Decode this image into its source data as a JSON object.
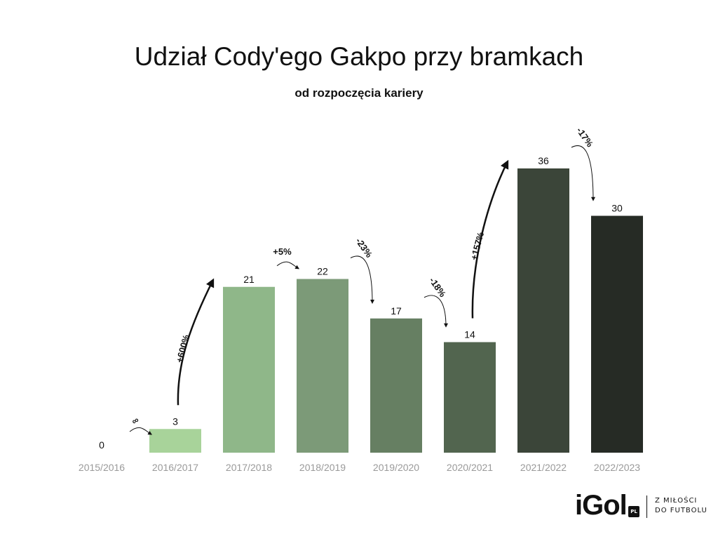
{
  "chart_data": {
    "type": "bar",
    "title": "Udział Cody'ego Gakpo przy bramkach",
    "subtitle": "od rozpoczęcia kariery",
    "categories": [
      "2015/2016",
      "2016/2017",
      "2017/2018",
      "2018/2019",
      "2019/2020",
      "2020/2021",
      "2021/2022",
      "2022/2023"
    ],
    "values": [
      0,
      3,
      21,
      22,
      17,
      14,
      36,
      30
    ],
    "colors": [
      "#a8d39a",
      "#a8d39a",
      "#8fb789",
      "#7c9a78",
      "#667f62",
      "#52654f",
      "#3b4539",
      "#262b25"
    ],
    "changes": [
      {
        "from": "2015/2016",
        "to": "2016/2017",
        "label": "∞"
      },
      {
        "from": "2016/2017",
        "to": "2017/2018",
        "label": "+600%"
      },
      {
        "from": "2017/2018",
        "to": "2018/2019",
        "label": "+5%"
      },
      {
        "from": "2018/2019",
        "to": "2019/2020",
        "label": "-23%"
      },
      {
        "from": "2019/2020",
        "to": "2020/2021",
        "label": "-18%"
      },
      {
        "from": "2020/2021",
        "to": "2021/2022",
        "label": "+157%"
      },
      {
        "from": "2021/2022",
        "to": "2022/2023",
        "label": "-17%"
      }
    ],
    "ylim": [
      0,
      36
    ],
    "grid": false,
    "legend": "none"
  },
  "logo": {
    "name": "iGol",
    "badge": "PL",
    "tagline_line1": "Z MIŁOŚCI",
    "tagline_line2": "DO FUTBOLU"
  }
}
